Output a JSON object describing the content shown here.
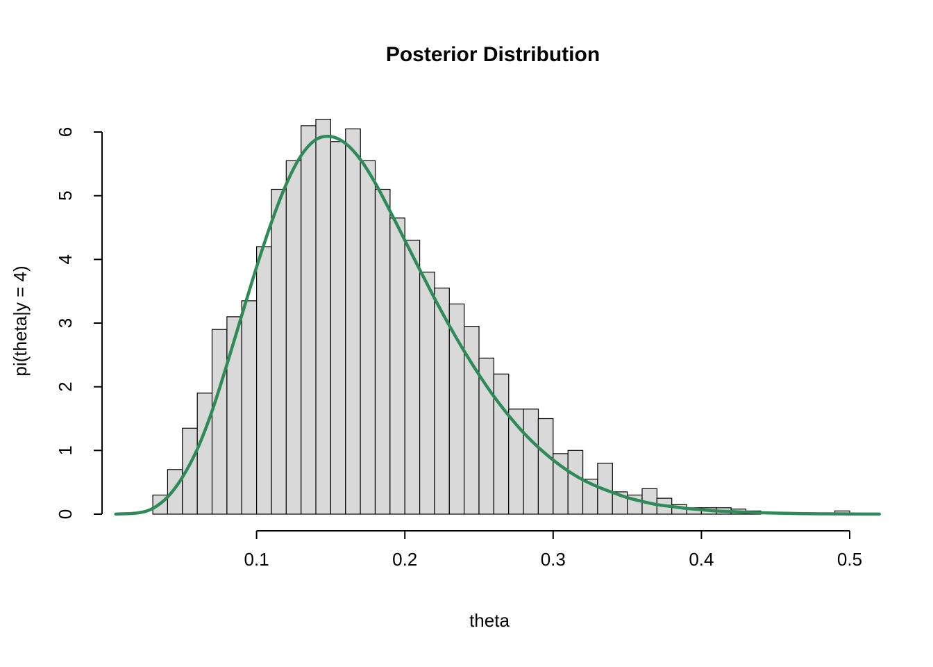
{
  "chart_data": {
    "type": "histogram",
    "title": "Posterior Distribution",
    "xlabel": "theta",
    "ylabel": "pi(theta|y = 4)",
    "xlim": [
      0,
      0.52
    ],
    "ylim": [
      0,
      6.2
    ],
    "grid": false,
    "legend": "none",
    "x_ticks": [
      0.1,
      0.2,
      0.3,
      0.4,
      0.5
    ],
    "x_tick_labels": [
      "0.1",
      "0.2",
      "0.3",
      "0.4",
      "0.5"
    ],
    "y_ticks": [
      0,
      1,
      2,
      3,
      4,
      5,
      6
    ],
    "y_tick_labels": [
      "0",
      "1",
      "2",
      "3",
      "4",
      "5",
      "6"
    ],
    "histogram": {
      "bin_start": 0.03,
      "bin_width": 0.01,
      "bar_fill": "#d9d9d9",
      "bar_stroke": "#000000",
      "densities": [
        0.3,
        0.7,
        1.35,
        1.9,
        2.9,
        3.1,
        3.35,
        4.2,
        5.1,
        5.55,
        6.1,
        6.2,
        5.85,
        6.05,
        5.55,
        5.1,
        4.65,
        4.3,
        3.8,
        3.55,
        3.3,
        2.95,
        2.45,
        2.2,
        1.65,
        1.65,
        1.5,
        0.95,
        1.0,
        0.55,
        0.8,
        0.35,
        0.3,
        0.4,
        0.25,
        0.15,
        0.1,
        0.1,
        0.1,
        0.08,
        0.05,
        0,
        0,
        0,
        0,
        0,
        0.05
      ]
    },
    "curve": {
      "name": "posterior-density-curve",
      "color": "#2e8b57",
      "stroke_width": 4.5,
      "points": [
        [
          0.005,
          0.001
        ],
        [
          0.02,
          0.02
        ],
        [
          0.03,
          0.09
        ],
        [
          0.04,
          0.27
        ],
        [
          0.05,
          0.58
        ],
        [
          0.06,
          1.02
        ],
        [
          0.07,
          1.62
        ],
        [
          0.08,
          2.35
        ],
        [
          0.09,
          3.12
        ],
        [
          0.1,
          3.88
        ],
        [
          0.11,
          4.58
        ],
        [
          0.12,
          5.18
        ],
        [
          0.13,
          5.63
        ],
        [
          0.14,
          5.88
        ],
        [
          0.15,
          5.93
        ],
        [
          0.16,
          5.82
        ],
        [
          0.17,
          5.57
        ],
        [
          0.18,
          5.2
        ],
        [
          0.19,
          4.76
        ],
        [
          0.2,
          4.3
        ],
        [
          0.21,
          3.84
        ],
        [
          0.22,
          3.39
        ],
        [
          0.23,
          2.96
        ],
        [
          0.24,
          2.56
        ],
        [
          0.25,
          2.19
        ],
        [
          0.26,
          1.85
        ],
        [
          0.27,
          1.55
        ],
        [
          0.28,
          1.28
        ],
        [
          0.29,
          1.05
        ],
        [
          0.3,
          0.85
        ],
        [
          0.31,
          0.68
        ],
        [
          0.32,
          0.54
        ],
        [
          0.33,
          0.43
        ],
        [
          0.34,
          0.34
        ],
        [
          0.35,
          0.26
        ],
        [
          0.36,
          0.2
        ],
        [
          0.37,
          0.15
        ],
        [
          0.38,
          0.12
        ],
        [
          0.39,
          0.09
        ],
        [
          0.4,
          0.07
        ],
        [
          0.41,
          0.05
        ],
        [
          0.42,
          0.04
        ],
        [
          0.43,
          0.03
        ],
        [
          0.44,
          0.022
        ],
        [
          0.45,
          0.016
        ],
        [
          0.46,
          0.012
        ],
        [
          0.47,
          0.008
        ],
        [
          0.48,
          0.006
        ],
        [
          0.49,
          0.004
        ],
        [
          0.5,
          0.003
        ],
        [
          0.52,
          0.001
        ]
      ]
    }
  }
}
